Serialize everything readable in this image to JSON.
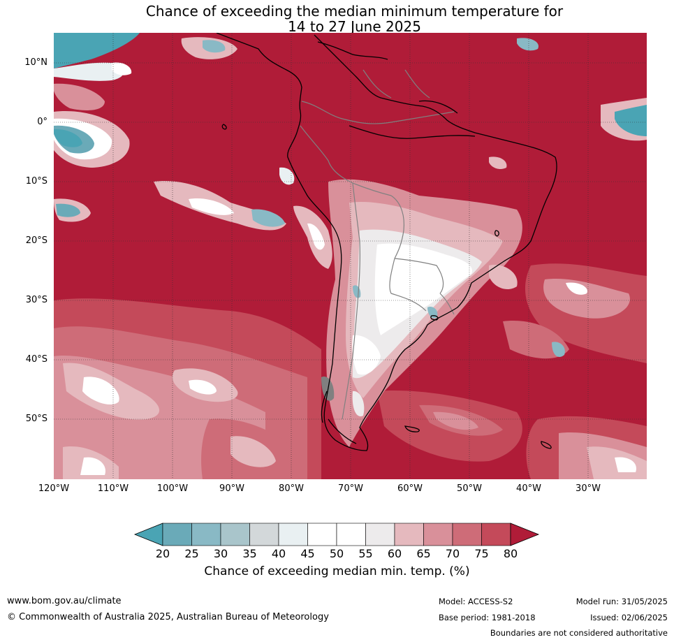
{
  "title_line1": "Chance of exceeding the median minimum temperature for",
  "title_line2": "14 to 27 June 2025",
  "map": {
    "region": "South America and surrounding oceans",
    "lat_labels": [
      "10°N",
      "0°",
      "10°S",
      "20°S",
      "30°S",
      "40°S",
      "50°S"
    ],
    "lon_labels": [
      "120°W",
      "110°W",
      "100°W",
      "90°W",
      "80°W",
      "70°W",
      "60°W",
      "50°W",
      "40°W",
      "30°W"
    ],
    "dominant_category": "80 and above",
    "colors": {
      "ocean_high": "#B01C38",
      "band_75_80": "#C44A5A",
      "band_70_75": "#CE6C78",
      "band_65_70": "#D9909A",
      "band_60_65": "#E5B9BE",
      "band_55_60": "#EDEBEC",
      "band_45_55": "#FFFFFF",
      "band_40_45": "#E9F0F2",
      "band_35_40": "#D3D8DA",
      "band_30_35": "#A9C5CB",
      "band_25_30": "#89B9C5",
      "band_20_25": "#6AAAB8",
      "band_below_20": "#4AA4B4",
      "coastline": "#000000",
      "borders": "#808080"
    }
  },
  "colorbar": {
    "ticks": [
      "20",
      "25",
      "30",
      "35",
      "40",
      "45",
      "50",
      "55",
      "60",
      "65",
      "70",
      "75",
      "80"
    ],
    "colors": [
      "#4AA4B4",
      "#6AAAB8",
      "#89B9C5",
      "#A9C5CB",
      "#D3D8DA",
      "#E9F0F2",
      "#FFFFFF",
      "#FFFFFF",
      "#EDEBEC",
      "#E5B9BE",
      "#D9909A",
      "#CE6C78",
      "#C44A5A",
      "#B01C38"
    ],
    "label": "Chance of exceeding median min. temp. (%)"
  },
  "footer": {
    "website": "www.bom.gov.au/climate",
    "copyright": "© Commonwealth of Australia 2025, Australian Bureau of Meteorology",
    "model": "Model: ACCESS-S2",
    "base_period": "Base period: 1981-2018",
    "model_run": "Model run: 31/05/2025",
    "issued": "Issued: 02/06/2025",
    "disclaimer": "Boundaries are not considered authoritative"
  }
}
